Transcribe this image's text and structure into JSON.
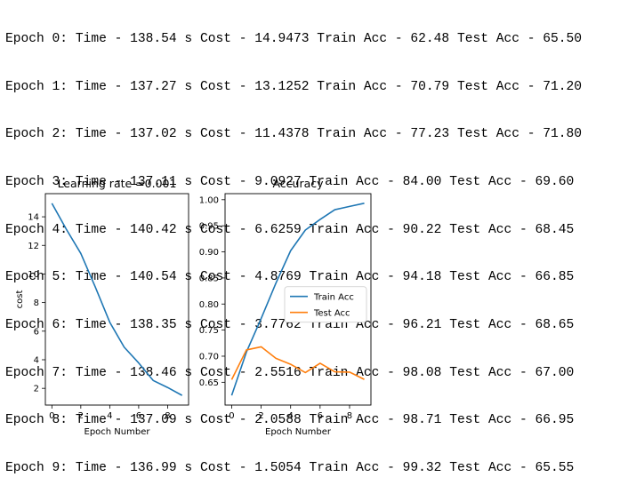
{
  "log": {
    "lines": [
      "Epoch 0: Time - 138.54 s Cost - 14.9473 Train Acc - 62.48 Test Acc - 65.50",
      "Epoch 1: Time - 137.27 s Cost - 13.1252 Train Acc - 70.79 Test Acc - 71.20",
      "Epoch 2: Time - 137.02 s Cost - 11.4378 Train Acc - 77.23 Test Acc - 71.80",
      "Epoch 3: Time - 137.11 s Cost - 9.0927 Train Acc - 84.00 Test Acc - 69.60",
      "Epoch 4: Time - 140.42 s Cost - 6.6259 Train Acc - 90.22 Test Acc - 68.45",
      "Epoch 5: Time - 140.54 s Cost - 4.8769 Train Acc - 94.18 Test Acc - 66.85",
      "Epoch 6: Time - 138.35 s Cost - 3.7762 Train Acc - 96.21 Test Acc - 68.65",
      "Epoch 7: Time - 138.46 s Cost - 2.5516 Train Acc - 98.08 Test Acc - 67.00",
      "Epoch 8: Time - 137.09 s Cost - 2.0588 Train Acc - 98.71 Test Acc - 66.95",
      "Epoch 9: Time - 136.99 s Cost - 1.5054 Train Acc - 99.32 Test Acc - 65.55"
    ]
  },
  "colors": {
    "blue": "#1f77b4",
    "orange": "#ff7f0e"
  },
  "chart_data": [
    {
      "type": "line",
      "title": "Learning rate =0.001",
      "xlabel": "Epoch Number",
      "ylabel": "cost",
      "x": [
        0,
        1,
        2,
        3,
        4,
        5,
        6,
        7,
        8,
        9
      ],
      "xlim": [
        -0.45,
        9.45
      ],
      "ylim": [
        0.83,
        15.62
      ],
      "xticks": [
        0,
        2,
        4,
        6,
        8
      ],
      "yticks": [
        2,
        4,
        6,
        8,
        10,
        12,
        14
      ],
      "series": [
        {
          "values": [
            14.9473,
            13.1252,
            11.4378,
            9.0927,
            6.6259,
            4.8769,
            3.7762,
            2.5516,
            2.0588,
            1.5054
          ],
          "color": "#1f77b4"
        }
      ],
      "legend": false
    },
    {
      "type": "line",
      "title": "Accuracy",
      "xlabel": "Epoch Number",
      "ylabel": "",
      "x": [
        0,
        1,
        2,
        3,
        4,
        5,
        6,
        7,
        8,
        9
      ],
      "xlim": [
        -0.45,
        9.45
      ],
      "ylim": [
        0.6063,
        1.0116
      ],
      "xticks": [
        0,
        2,
        4,
        6,
        8
      ],
      "yticks": [
        0.65,
        0.7,
        0.75,
        0.8,
        0.85,
        0.9,
        0.95,
        1.0
      ],
      "ytick_labels": [
        "0.65",
        "0.70",
        "0.75",
        "0.80",
        "0.85",
        "0.90",
        "0.95",
        "1.00"
      ],
      "series": [
        {
          "name": "Train Acc",
          "values": [
            0.6248,
            0.7079,
            0.7723,
            0.84,
            0.9022,
            0.9418,
            0.9621,
            0.9808,
            0.9871,
            0.9932
          ],
          "color": "#1f77b4"
        },
        {
          "name": "Test Acc",
          "values": [
            0.655,
            0.712,
            0.718,
            0.696,
            0.6845,
            0.6685,
            0.6865,
            0.67,
            0.6695,
            0.6555
          ],
          "color": "#ff7f0e"
        }
      ],
      "legend": "center-right"
    }
  ]
}
